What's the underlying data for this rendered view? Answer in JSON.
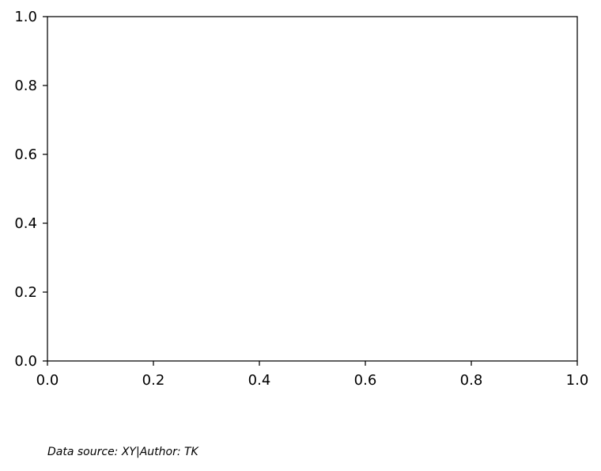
{
  "chart_data": {
    "type": "line",
    "title": "",
    "xlabel": "",
    "ylabel": "",
    "xlim": [
      0.0,
      1.0
    ],
    "ylim": [
      0.0,
      1.0
    ],
    "x_ticks": [
      0.0,
      0.2,
      0.4,
      0.6,
      0.8,
      1.0
    ],
    "y_ticks": [
      0.0,
      0.2,
      0.4,
      0.6,
      0.8,
      1.0
    ],
    "x_tick_labels": [
      "0.0",
      "0.2",
      "0.4",
      "0.6",
      "0.8",
      "1.0"
    ],
    "y_tick_labels": [
      "0.0",
      "0.2",
      "0.4",
      "0.6",
      "0.8",
      "1.0"
    ],
    "series": [],
    "grid": false,
    "legend": "none"
  },
  "footer": {
    "note": "Data source: XY|Author: TK"
  },
  "colors": {
    "axis": "#000000",
    "background": "#ffffff"
  }
}
